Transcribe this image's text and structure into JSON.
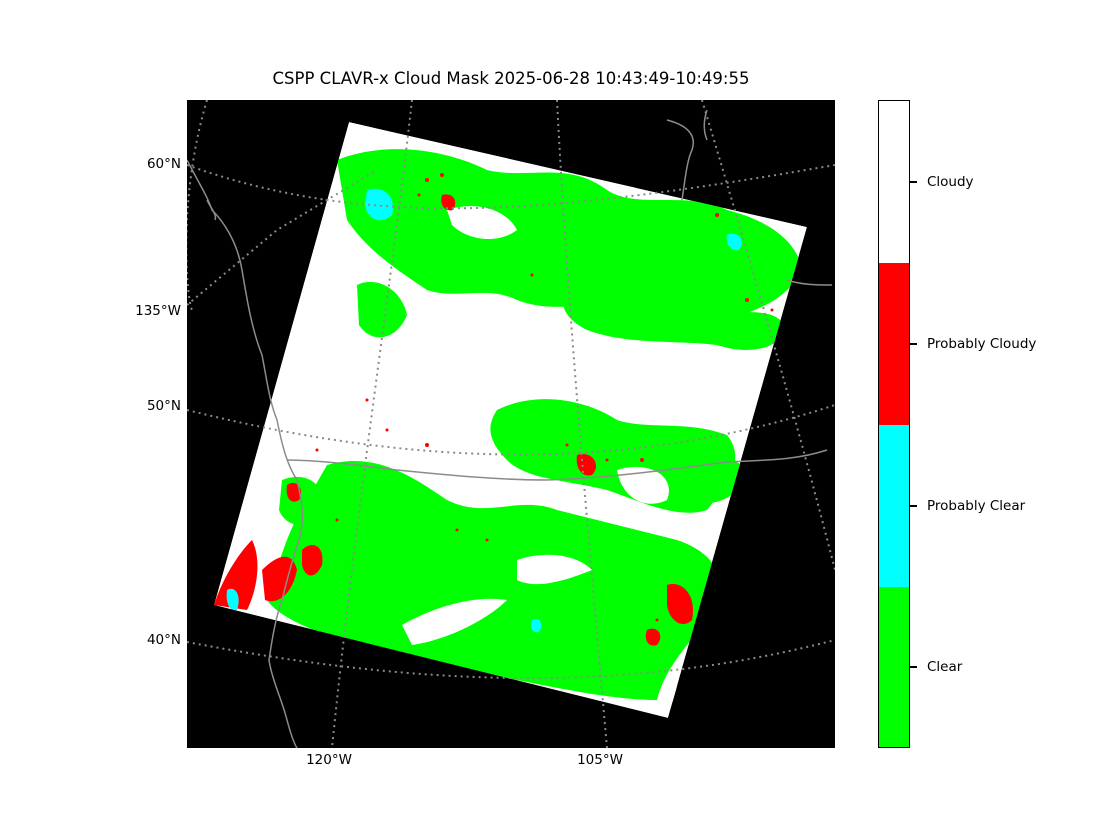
{
  "figure": {
    "title": "CSPP CLAVR-x Cloud Mask 2025-06-28 10:43:49-10:49:55"
  },
  "map": {
    "background_color": "#000000",
    "latitude_labels": [
      "60°N",
      "135°W",
      "50°N",
      "40°N"
    ],
    "longitude_labels": [
      "120°W",
      "105°W"
    ],
    "gridline_color": "#808080",
    "coastline_color": "#8c8c8c"
  },
  "colorbar": {
    "categories": [
      {
        "label": "Cloudy",
        "color": "#ffffff"
      },
      {
        "label": "Probably Cloudy",
        "color": "#ff0000"
      },
      {
        "label": "Probably Clear",
        "color": "#00ffff"
      },
      {
        "label": "Clear",
        "color": "#00ff00"
      }
    ]
  }
}
